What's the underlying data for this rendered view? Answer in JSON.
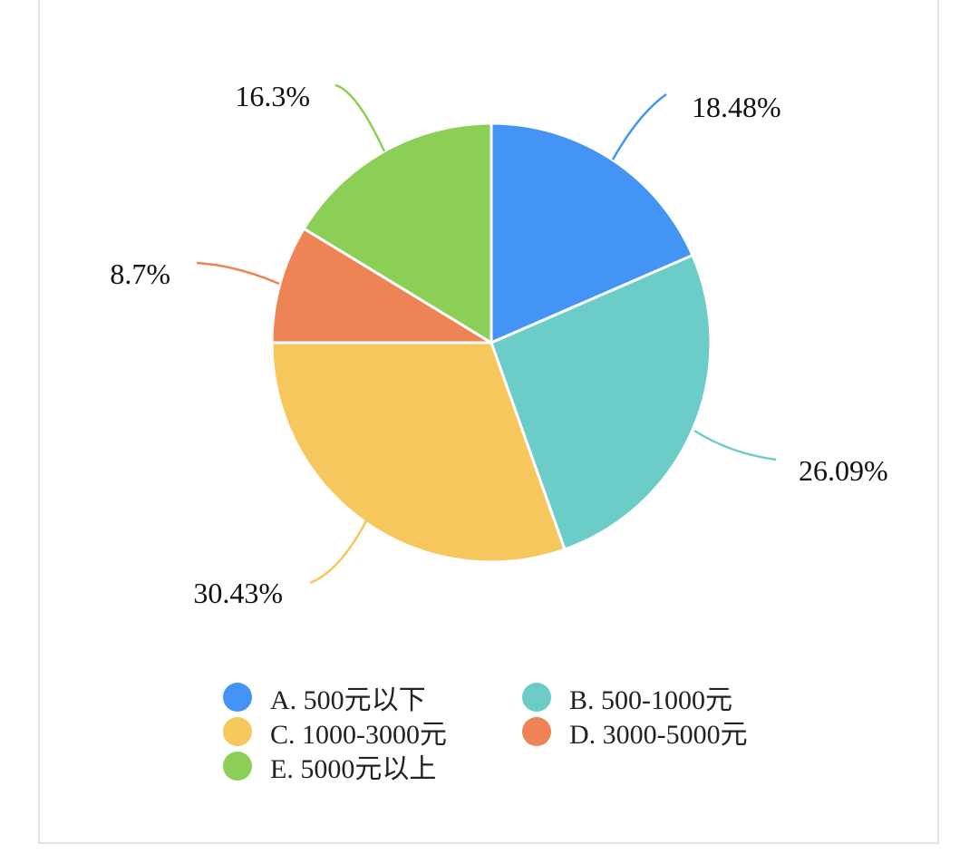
{
  "chart_data": {
    "type": "pie",
    "title": "",
    "slices": [
      {
        "name": "A. 500元以下",
        "value": 18.48,
        "label": "18.48%",
        "color": "#4394f4"
      },
      {
        "name": "B. 500-1000元",
        "value": 26.09,
        "label": "26.09%",
        "color": "#6ccdc8"
      },
      {
        "name": "C. 1000-3000元",
        "value": 30.43,
        "label": "30.43%",
        "color": "#f5c75d"
      },
      {
        "name": "D. 3000-5000元",
        "value": 8.7,
        "label": "8.7%",
        "color": "#ee8355"
      },
      {
        "name": "E. 5000元以上",
        "value": 16.3,
        "label": "16.3%",
        "color": "#8ccf57"
      }
    ],
    "legend_position": "bottom",
    "start_angle": "top, clockwise"
  }
}
